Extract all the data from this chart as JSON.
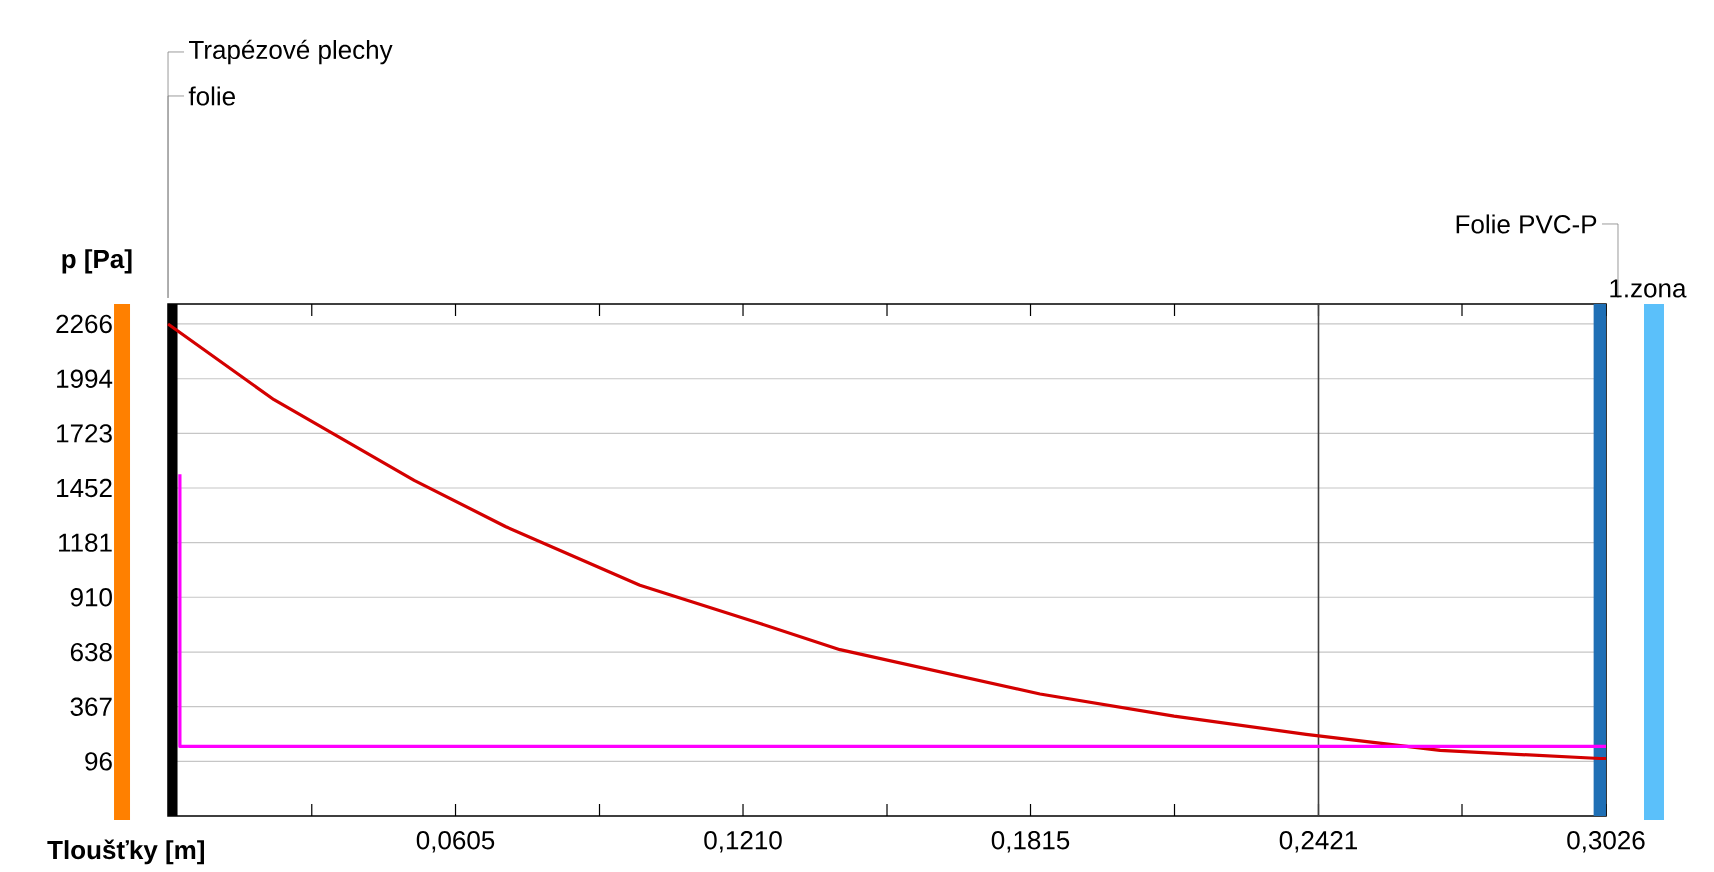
{
  "chart_data": {
    "type": "line",
    "xlabel": "Tloušťky [m]",
    "ylabel": "p [Pa]",
    "xlim": [
      0,
      0.3026
    ],
    "ylim": [
      -175,
      2365
    ],
    "xticks": [
      {
        "value": 0.03025,
        "label": null
      },
      {
        "value": 0.0605,
        "label": "0,0605"
      },
      {
        "value": 0.0908,
        "label": null
      },
      {
        "value": 0.121,
        "label": "0,1210"
      },
      {
        "value": 0.1513,
        "label": null
      },
      {
        "value": 0.1815,
        "label": "0,1815"
      },
      {
        "value": 0.2118,
        "label": null
      },
      {
        "value": 0.2421,
        "label": "0,2421"
      },
      {
        "value": 0.2723,
        "label": null
      },
      {
        "value": 0.3026,
        "label": "0,3026"
      }
    ],
    "yticks": [
      96,
      367,
      638,
      910,
      1181,
      1452,
      1723,
      1994,
      2266
    ],
    "grid": "y",
    "marker": "none",
    "line_style": "solid",
    "series": [
      {
        "color": "#d40000",
        "x": [
          0,
          0.0223,
          0.0518,
          0.0711,
          0.0993,
          0.1246,
          0.1414,
          0.1835,
          0.2117,
          0.2395,
          0.2677,
          0.3013,
          0.3026
        ],
        "values": [
          2266,
          1890,
          1490,
          1260,
          970,
          780,
          650,
          430,
          320,
          230,
          150,
          110,
          110
        ]
      },
      {
        "color": "#ff00ff",
        "x": [
          0.0025,
          0.0025,
          0.3026
        ],
        "values": [
          1520,
          170,
          170
        ]
      }
    ],
    "ref_lines": [
      {
        "axis": "x",
        "value": 0.2421,
        "color": "#404040"
      }
    ],
    "bands": [
      {
        "axis": "x",
        "from": 0,
        "to": 0.002,
        "color": "#000000"
      },
      {
        "axis": "x",
        "from": 0.3,
        "to": 0.3026,
        "color": "#1f6fb5"
      }
    ],
    "annotations": [
      "Trapézové plechy",
      "folie",
      "Folie PVC-P",
      "1.zona"
    ]
  }
}
